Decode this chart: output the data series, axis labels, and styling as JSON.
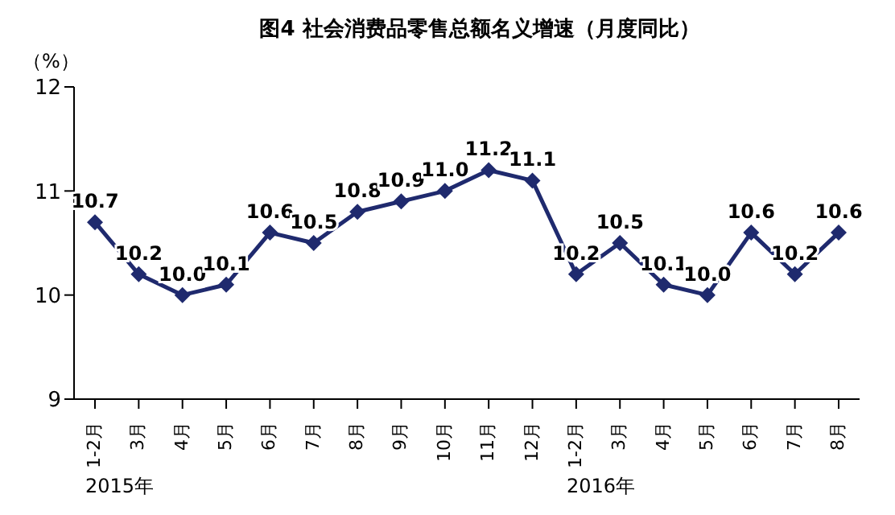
{
  "chart_data": {
    "type": "line",
    "title": "图4  社会消费品零售总额名义增速（月度同比）",
    "ylabel": "（%）",
    "categories": [
      "1-2月",
      "3月",
      "4月",
      "5月",
      "6月",
      "7月",
      "8月",
      "9月",
      "10月",
      "11月",
      "12月",
      "1-2月",
      "3月",
      "4月",
      "5月",
      "6月",
      "7月",
      "8月"
    ],
    "series": [
      {
        "color": "#1f2a6e",
        "values": [
          10.7,
          10.2,
          10.0,
          10.1,
          10.6,
          10.5,
          10.8,
          10.9,
          11.0,
          11.2,
          11.1,
          10.2,
          10.5,
          10.1,
          10.0,
          10.6,
          10.2,
          10.6
        ],
        "value_labels": [
          "10.7",
          "10.2",
          "10.0",
          "10.1",
          "10.6",
          "10.5",
          "10.8",
          "10.9",
          "11.0",
          "11.2",
          "11.1",
          "10.2",
          "10.5",
          "10.1",
          "10.0",
          "10.6",
          "10.2",
          "10.6"
        ]
      }
    ],
    "ylim": [
      9,
      12
    ],
    "yticks": [
      9,
      10,
      11,
      12
    ],
    "grid": false,
    "legend": false,
    "marker": "diamond",
    "line_style": "solid",
    "annotations": [
      "2015年",
      "2016年"
    ]
  }
}
